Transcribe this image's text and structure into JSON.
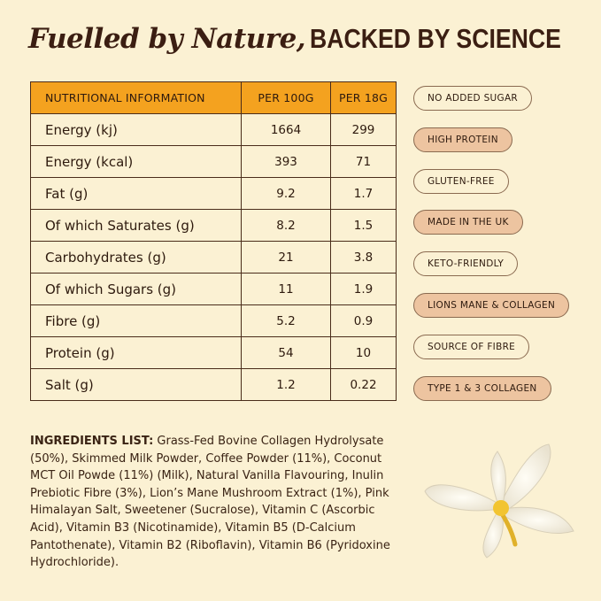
{
  "title": {
    "italic": "Fuelled by Nature,",
    "caps": "BACKED BY SCIENCE"
  },
  "table": {
    "headers": [
      "NUTRITIONAL INFORMATION",
      "PER 100G",
      "PER 18G"
    ],
    "rows": [
      [
        "Energy (kj)",
        "1664",
        "299"
      ],
      [
        "Energy (kcal)",
        "393",
        "71"
      ],
      [
        "Fat (g)",
        "9.2",
        "1.7"
      ],
      [
        "Of which Saturates (g)",
        "8.2",
        "1.5"
      ],
      [
        "Carbohydrates (g)",
        "21",
        "3.8"
      ],
      [
        "Of which Sugars (g)",
        "11",
        "1.9"
      ],
      [
        "Fibre (g)",
        "5.2",
        "0.9"
      ],
      [
        "Protein (g)",
        "54",
        "10"
      ],
      [
        "Salt (g)",
        "1.2",
        "0.22"
      ]
    ]
  },
  "badges": [
    {
      "label": "NO ADDED SUGAR",
      "filled": false
    },
    {
      "label": "HIGH PROTEIN",
      "filled": true
    },
    {
      "label": "GLUTEN-FREE",
      "filled": false
    },
    {
      "label": "MADE IN THE UK",
      "filled": true
    },
    {
      "label": "KETO-FRIENDLY",
      "filled": false
    },
    {
      "label": "LIONS MANE & COLLAGEN",
      "filled": true
    },
    {
      "label": "SOURCE OF FIBRE",
      "filled": false
    },
    {
      "label": "TYPE 1 & 3 COLLAGEN",
      "filled": true
    }
  ],
  "ingredients": {
    "label": "INGREDIENTS LIST:",
    "text": " Grass-Fed Bovine Collagen Hydrolysate (50%), Skimmed Milk Powder, Coffee Powder (11%), Coconut MCT Oil Powde (11%) (Milk), Natural Vanilla Flavouring, Inulin Prebiotic Fibre (3%), Lion’s Mane Mushroom Extract (1%), Pink Himalayan Salt, Sweetener (Sucralose), Vitamin C (Ascorbic Acid), Vitamin B3 (Nicotinamide), Vitamin B5 (D-Calcium Pantothenate), Vitamin B2 (Riboflavin), Vitamin B6 (Pyridoxine Hydrochloride)."
  },
  "colors": {
    "background": "#fbf1d3",
    "header": "#f4a21f",
    "badge_fill": "#edc4a0",
    "text": "#3b1e12"
  }
}
